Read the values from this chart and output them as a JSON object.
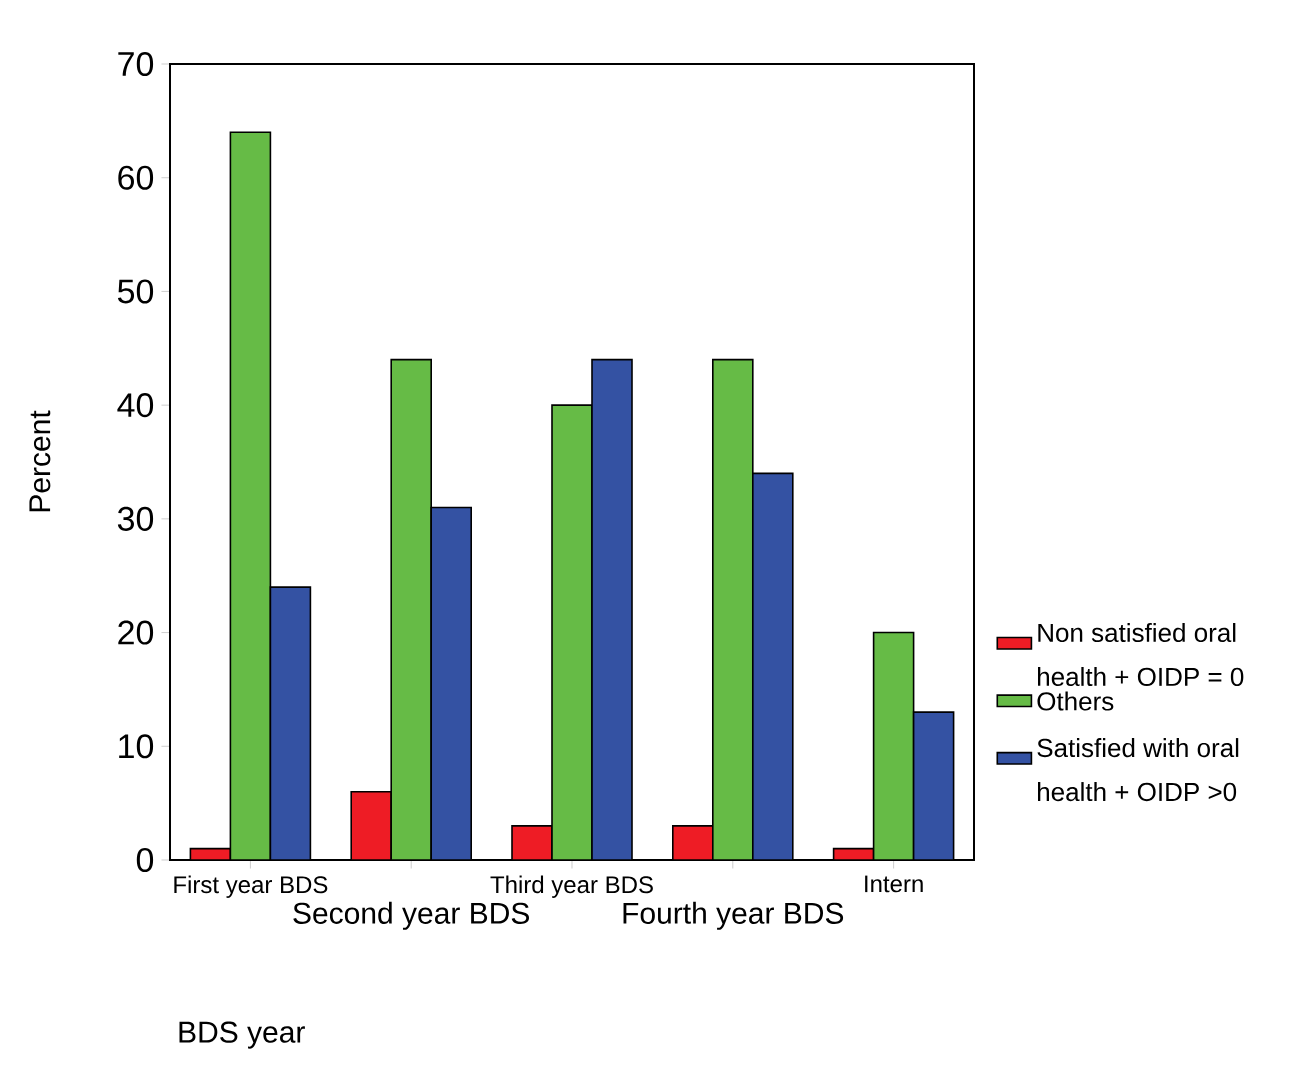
{
  "chart_data": {
    "type": "bar",
    "xlabel": "BDS year",
    "ylabel": "Percent",
    "categories": [
      "First year BDS",
      "Second year BDS",
      "Third year BDS",
      "Fourth year BDS",
      "Intern"
    ],
    "series": [
      {
        "name": "Non satisfied oral health + OIDP = 0",
        "color": "#ee1c25",
        "values": [
          1,
          6,
          3,
          3,
          1
        ]
      },
      {
        "name": "Others",
        "color": "#66bb46",
        "values": [
          64,
          44,
          40,
          44,
          20
        ]
      },
      {
        "name": "Satisfied with oral health + OIDP >0",
        "color": "#3452a3",
        "values": [
          24,
          31,
          44,
          34,
          13
        ]
      }
    ],
    "ylim": [
      0,
      70
    ],
    "yticks": [
      0,
      10,
      20,
      30,
      40,
      50,
      60,
      70
    ],
    "grid": false,
    "legend": "right"
  }
}
